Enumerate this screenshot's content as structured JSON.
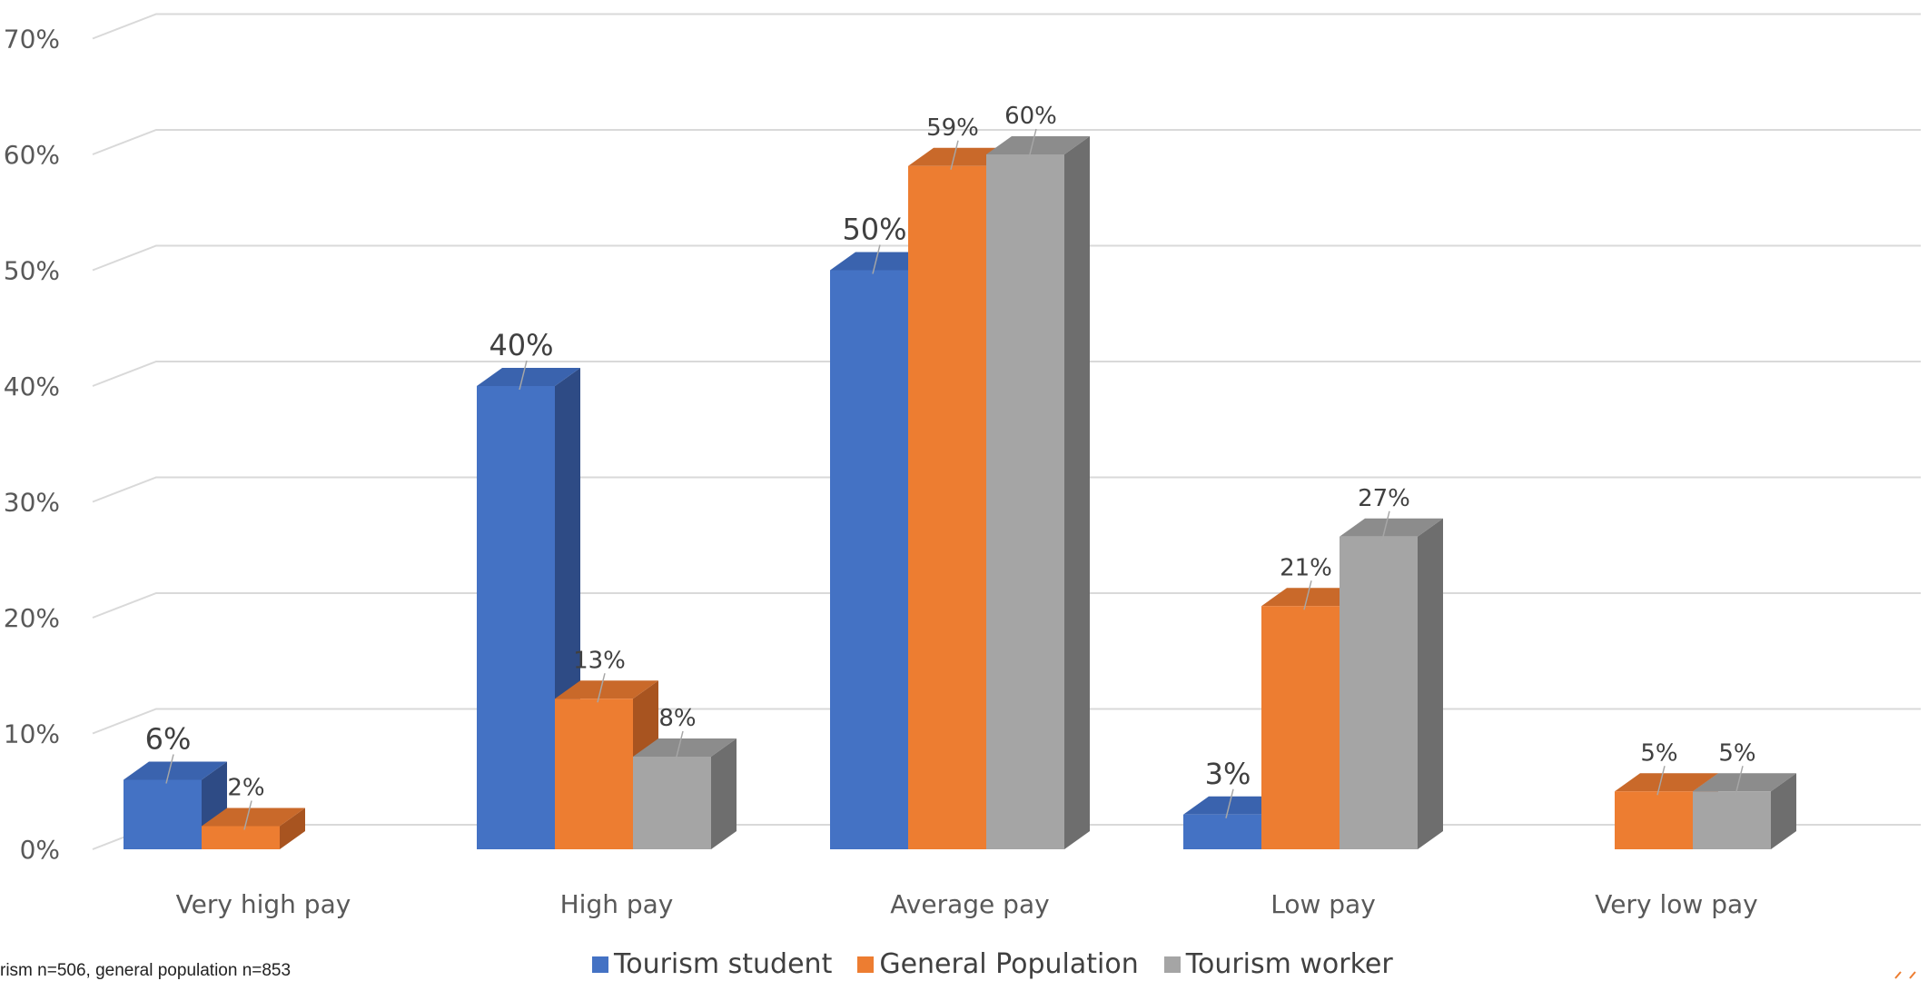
{
  "footnote": "rism n=506, general population n=853",
  "chart_data": {
    "type": "bar",
    "title": "",
    "xlabel": "",
    "ylabel": "",
    "ylim": [
      0,
      70
    ],
    "ytick_labels": [
      "0%",
      "10%",
      "20%",
      "30%",
      "40%",
      "50%",
      "60%",
      "70%"
    ],
    "categories": [
      "Very high pay",
      "High pay",
      "Average pay",
      "Low pay",
      "Very low pay"
    ],
    "series": [
      {
        "name": "Tourism student",
        "color": "#4472C4",
        "side_color": "#2E4B85",
        "top_color": "#3A63AE",
        "values": [
          6,
          40,
          50,
          3,
          null
        ],
        "labels": [
          "6%",
          "40%",
          "50%",
          "3%",
          ""
        ]
      },
      {
        "name": "General Population",
        "color": "#ED7D31",
        "side_color": "#A85420",
        "top_color": "#C9692A",
        "values": [
          2,
          13,
          59,
          21,
          5
        ],
        "labels": [
          "2%",
          "13%",
          "59%",
          "21%",
          "5%"
        ]
      },
      {
        "name": "Tourism worker",
        "color": "#A5A5A5",
        "side_color": "#6E6E6E",
        "top_color": "#8C8C8C",
        "values": [
          null,
          8,
          60,
          27,
          5
        ],
        "labels": [
          "",
          "8%",
          "60%",
          "27%",
          "5%"
        ]
      }
    ],
    "grid": true,
    "style": "3d-clustered-column",
    "legend_position": "bottom"
  }
}
